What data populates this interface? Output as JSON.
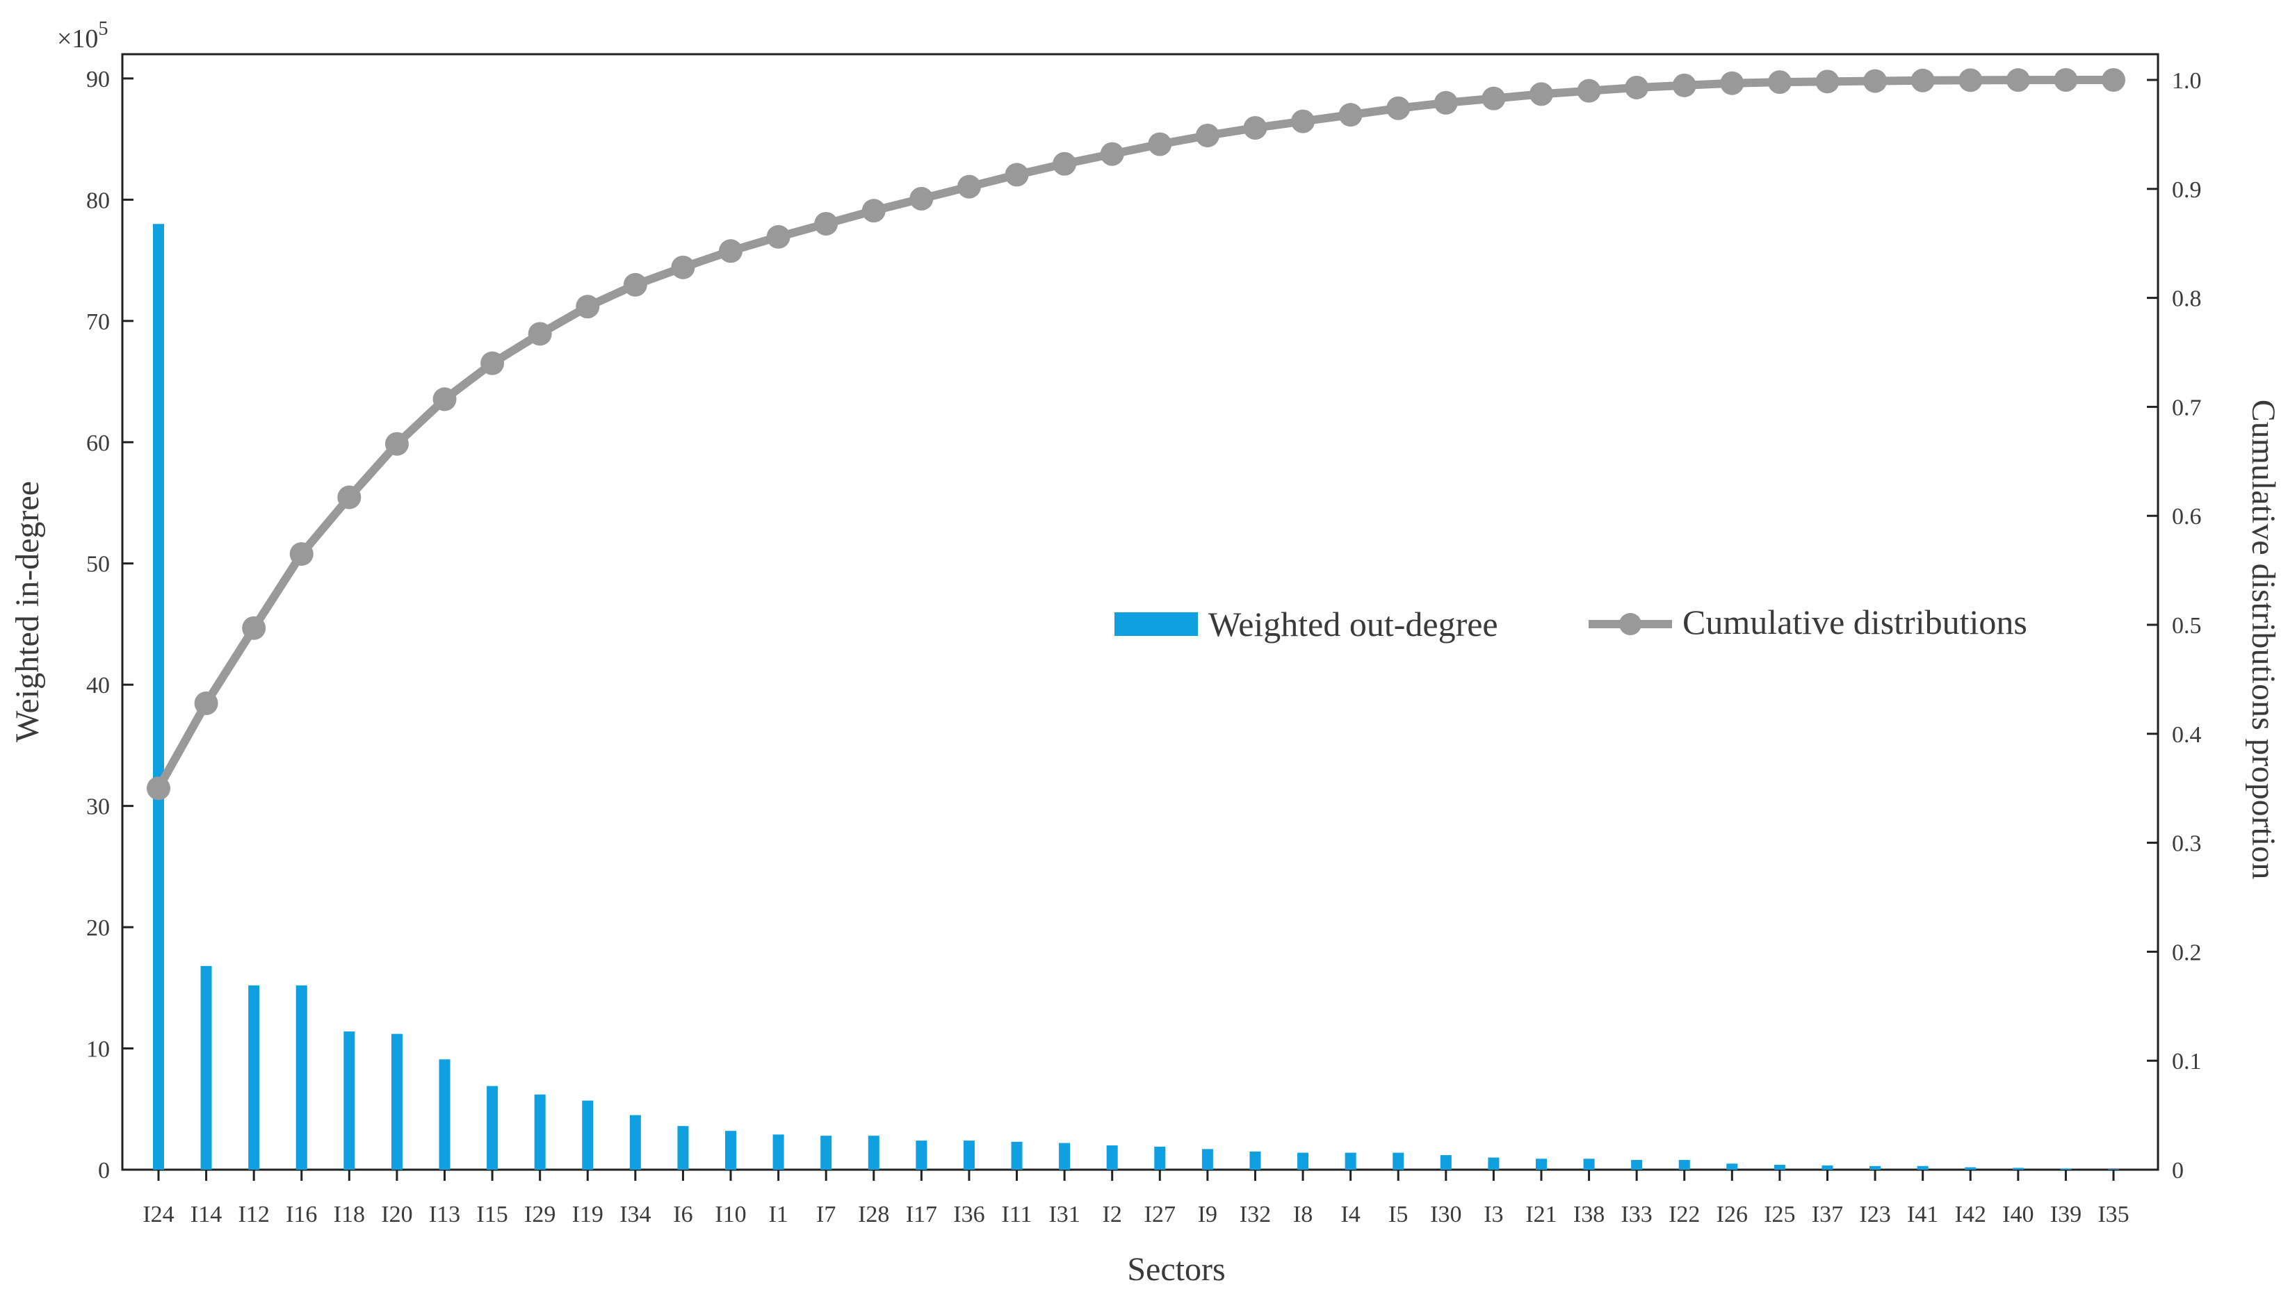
{
  "chart_data": {
    "type": "bar",
    "title": "",
    "xlabel": "Sectors",
    "ylabel": "Weighted in-degree",
    "y2label": "Cumulative distributions proportion",
    "y_multiplier_label": "×10",
    "y_multiplier_exponent": "5",
    "ylim": [
      0,
      92
    ],
    "y2lim": [
      0,
      1.0
    ],
    "yticks": [
      "0",
      "10",
      "20",
      "30",
      "40",
      "50",
      "60",
      "70",
      "80",
      "90"
    ],
    "y2ticks": [
      "0",
      "0.1",
      "0.2",
      "0.3",
      "0.4",
      "0.5",
      "0.6",
      "0.7",
      "0.8",
      "0.9",
      "1.0"
    ],
    "grid": false,
    "legend_position": "center-right",
    "categories": [
      "I24",
      "I14",
      "I12",
      "I16",
      "I18",
      "I20",
      "I13",
      "I15",
      "I29",
      "I19",
      "I34",
      "I6",
      "I10",
      "I1",
      "I7",
      "I28",
      "I17",
      "I36",
      "I11",
      "I31",
      "I2",
      "I27",
      "I9",
      "I32",
      "I8",
      "I4",
      "I5",
      "I30",
      "I3",
      "I21",
      "I38",
      "I33",
      "I22",
      "I26",
      "I25",
      "I37",
      "I23",
      "I41",
      "I42",
      "I40",
      "I39",
      "I35"
    ],
    "series": [
      {
        "name": "Weighted out-degree",
        "type": "bar",
        "axis": "left",
        "color": "#0ea0e0",
        "values": [
          78.0,
          16.8,
          15.2,
          15.2,
          11.4,
          11.2,
          9.1,
          6.9,
          6.2,
          5.7,
          4.5,
          3.6,
          3.2,
          2.9,
          2.8,
          2.8,
          2.4,
          2.4,
          2.3,
          2.2,
          2.0,
          1.9,
          1.7,
          1.5,
          1.4,
          1.4,
          1.4,
          1.2,
          1.0,
          0.9,
          0.9,
          0.8,
          0.8,
          0.5,
          0.4,
          0.35,
          0.3,
          0.3,
          0.2,
          0.15,
          0.1,
          0.05
        ]
      },
      {
        "name": "Cumulative distributions",
        "type": "line",
        "axis": "right",
        "color": "#999999",
        "values": [
          0.35,
          0.428,
          0.497,
          0.565,
          0.617,
          0.666,
          0.707,
          0.74,
          0.767,
          0.792,
          0.812,
          0.828,
          0.843,
          0.856,
          0.868,
          0.88,
          0.891,
          0.902,
          0.913,
          0.923,
          0.932,
          0.941,
          0.949,
          0.956,
          0.962,
          0.968,
          0.974,
          0.979,
          0.983,
          0.987,
          0.99,
          0.993,
          0.995,
          0.997,
          0.998,
          0.9985,
          0.999,
          0.9995,
          0.9998,
          0.9999,
          1.0,
          1.0
        ]
      }
    ]
  }
}
